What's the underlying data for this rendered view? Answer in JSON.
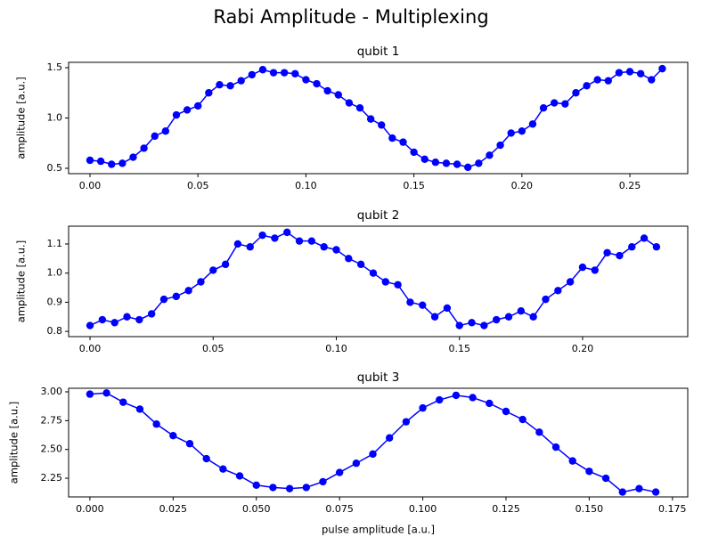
{
  "title": "Rabi Amplitude - Multiplexing",
  "chart_data": [
    {
      "type": "line",
      "title": "qubit 1",
      "y_label": "amplitude  [a.u.]",
      "color": "#0000ff",
      "x": [
        0,
        0.005,
        0.01,
        0.015,
        0.02,
        0.025,
        0.03,
        0.035,
        0.04,
        0.045,
        0.05,
        0.055,
        0.06,
        0.065,
        0.07,
        0.075,
        0.08,
        0.085,
        0.09,
        0.095,
        0.1,
        0.105,
        0.11,
        0.115,
        0.12,
        0.125,
        0.13,
        0.135,
        0.14,
        0.145,
        0.15,
        0.155,
        0.16,
        0.165,
        0.17,
        0.175,
        0.18,
        0.185,
        0.19,
        0.195,
        0.2,
        0.205,
        0.21,
        0.215,
        0.22,
        0.225,
        0.23,
        0.235,
        0.24,
        0.245,
        0.25,
        0.255,
        0.26,
        0.265
      ],
      "values": [
        0.58,
        0.57,
        0.54,
        0.55,
        0.61,
        0.7,
        0.82,
        0.87,
        1.03,
        1.08,
        1.12,
        1.25,
        1.33,
        1.32,
        1.37,
        1.43,
        1.48,
        1.45,
        1.45,
        1.44,
        1.38,
        1.34,
        1.27,
        1.23,
        1.15,
        1.1,
        0.99,
        0.93,
        0.8,
        0.76,
        0.66,
        0.59,
        0.56,
        0.55,
        0.54,
        0.51,
        0.55,
        0.63,
        0.73,
        0.85,
        0.87,
        0.94,
        1.1,
        1.15,
        1.14,
        1.25,
        1.32,
        1.38,
        1.37,
        1.45,
        1.46,
        1.44,
        1.38,
        1.49
      ],
      "xlim": [
        -0.0099,
        0.2768
      ],
      "ylim": [
        0.447,
        1.553
      ],
      "xticks": [
        {
          "value": 0,
          "label": "0.00"
        },
        0.05,
        {
          "value": 0.1,
          "label": "0.10"
        },
        0.15,
        {
          "value": 0.2,
          "label": "0.20"
        },
        0.25
      ],
      "yticks": [
        0.5,
        {
          "value": 1,
          "label": "1.0"
        },
        1.5
      ]
    },
    {
      "type": "line",
      "title": "qubit 2",
      "y_label": "amplitude  [a.u.]",
      "color": "#0000ff",
      "x": [
        0,
        0.005,
        0.01,
        0.015,
        0.02,
        0.025,
        0.03,
        0.035,
        0.04,
        0.045,
        0.05,
        0.055,
        0.06,
        0.065,
        0.07,
        0.075,
        0.08,
        0.085,
        0.09,
        0.095,
        0.1,
        0.105,
        0.11,
        0.115,
        0.12,
        0.125,
        0.13,
        0.135,
        0.14,
        0.145,
        0.15,
        0.155,
        0.16,
        0.165,
        0.17,
        0.175,
        0.18,
        0.185,
        0.19,
        0.195,
        0.2,
        0.205,
        0.21,
        0.215,
        0.22,
        0.225,
        0.23
      ],
      "values": [
        0.82,
        0.84,
        0.83,
        0.85,
        0.84,
        0.86,
        0.91,
        0.92,
        0.94,
        0.97,
        1.01,
        1.03,
        1.1,
        1.09,
        1.13,
        1.12,
        1.14,
        1.11,
        1.11,
        1.09,
        1.08,
        1.05,
        1.03,
        1,
        0.97,
        0.96,
        0.9,
        0.89,
        0.85,
        0.88,
        0.82,
        0.83,
        0.82,
        0.84,
        0.85,
        0.87,
        0.85,
        0.91,
        0.94,
        0.97,
        1.02,
        1.01,
        1.07,
        1.06,
        1.09,
        1.12,
        1.09
      ],
      "xlim": [
        -0.0087,
        0.2427
      ],
      "ylim": [
        0.782,
        1.161
      ],
      "xticks": [
        {
          "value": 0,
          "label": "0.00"
        },
        0.05,
        {
          "value": 0.1,
          "label": "0.10"
        },
        0.15,
        {
          "value": 0.2,
          "label": "0.20"
        }
      ],
      "yticks": [
        0.8,
        0.9,
        {
          "value": 1,
          "label": "1.0"
        },
        1.1
      ]
    },
    {
      "type": "line",
      "title": "qubit 3",
      "y_label": "amplitude  [a.u.]",
      "x_label": "pulse amplitude  [a.u.]",
      "color": "#0000ff",
      "x": [
        0,
        0.005,
        0.01,
        0.015,
        0.02,
        0.025,
        0.03,
        0.035,
        0.04,
        0.045,
        0.05,
        0.055,
        0.06,
        0.065,
        0.07,
        0.075,
        0.08,
        0.085,
        0.09,
        0.095,
        0.1,
        0.105,
        0.11,
        0.115,
        0.12,
        0.125,
        0.13,
        0.135,
        0.14,
        0.145,
        0.15,
        0.155,
        0.16,
        0.165,
        0.17
      ],
      "values": [
        2.98,
        2.99,
        2.91,
        2.85,
        2.72,
        2.62,
        2.55,
        2.42,
        2.33,
        2.27,
        2.19,
        2.17,
        2.16,
        2.17,
        2.22,
        2.3,
        2.38,
        2.46,
        2.6,
        2.74,
        2.86,
        2.93,
        2.97,
        2.95,
        2.9,
        2.83,
        2.76,
        2.65,
        2.52,
        2.4,
        2.31,
        2.25,
        2.13,
        2.16,
        2.13
      ],
      "xlim": [
        -0.0064,
        0.1796
      ],
      "ylim": [
        2.088,
        3.031
      ],
      "xticks": [
        {
          "value": 0,
          "label": "0.000"
        },
        0.025,
        {
          "value": 0.05,
          "label": "0.050"
        },
        0.075,
        {
          "value": 0.1,
          "label": "0.100"
        },
        0.125,
        {
          "value": 0.15,
          "label": "0.150"
        },
        0.175
      ],
      "yticks": [
        2.25,
        {
          "value": 2.5,
          "label": "2.50"
        },
        2.75,
        {
          "value": 3,
          "label": "3.00"
        }
      ]
    }
  ]
}
